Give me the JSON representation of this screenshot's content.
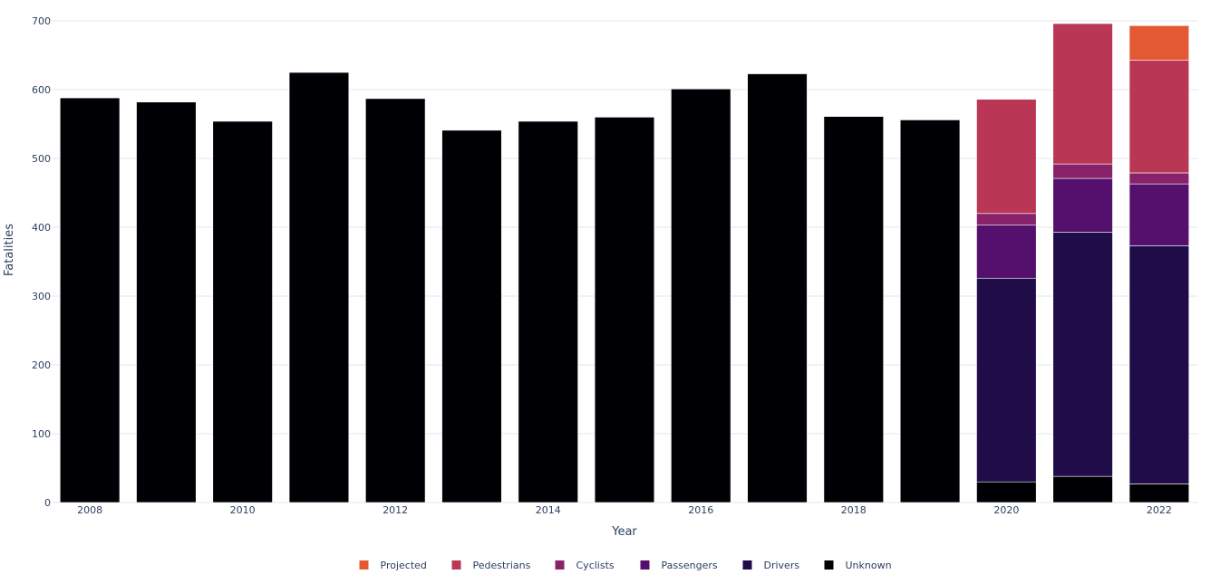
{
  "chart_data": {
    "type": "bar",
    "stacked": true,
    "xlabel": "Year",
    "ylabel": "Fatalities",
    "ylim": [
      0,
      700
    ],
    "y_ticks": [
      0,
      100,
      200,
      300,
      400,
      500,
      600,
      700
    ],
    "x_ticks": [
      2008,
      2010,
      2012,
      2014,
      2016,
      2018,
      2020,
      2022
    ],
    "grid": true,
    "legend_position": "bottom-center",
    "categories": [
      2008,
      2009,
      2010,
      2011,
      2012,
      2013,
      2014,
      2015,
      2016,
      2017,
      2018,
      2019,
      2020,
      2021,
      2022
    ],
    "series": [
      {
        "name": "Unknown",
        "color": "#000004",
        "values": [
          588,
          582,
          554,
          625,
          587,
          541,
          554,
          560,
          601,
          623,
          561,
          556,
          30,
          38,
          27
        ]
      },
      {
        "name": "Drivers",
        "color": "#1f0c48",
        "values": [
          0,
          0,
          0,
          0,
          0,
          0,
          0,
          0,
          0,
          0,
          0,
          0,
          296,
          355,
          346
        ]
      },
      {
        "name": "Passengers",
        "color": "#550f6d",
        "values": [
          0,
          0,
          0,
          0,
          0,
          0,
          0,
          0,
          0,
          0,
          0,
          0,
          77,
          78,
          90
        ]
      },
      {
        "name": "Cyclists",
        "color": "#88226a",
        "values": [
          0,
          0,
          0,
          0,
          0,
          0,
          0,
          0,
          0,
          0,
          0,
          0,
          17,
          21,
          16
        ]
      },
      {
        "name": "Pedestrians",
        "color": "#ba3655",
        "values": [
          0,
          0,
          0,
          0,
          0,
          0,
          0,
          0,
          0,
          0,
          0,
          0,
          166,
          204,
          164
        ]
      },
      {
        "name": "Projected",
        "color": "#e35933",
        "values": [
          0,
          0,
          0,
          0,
          0,
          0,
          0,
          0,
          0,
          0,
          0,
          0,
          0,
          0,
          50
        ]
      }
    ],
    "legend_order": [
      "Projected",
      "Pedestrians",
      "Cyclists",
      "Passengers",
      "Drivers",
      "Unknown"
    ]
  }
}
